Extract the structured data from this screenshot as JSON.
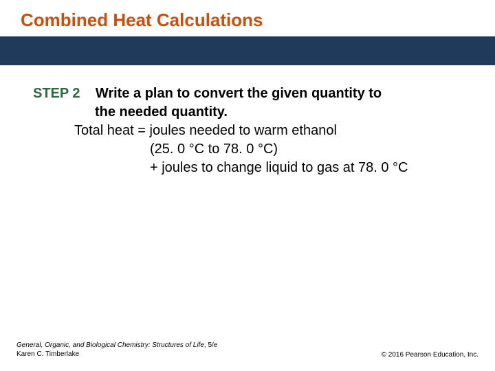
{
  "colors": {
    "title": "#c84f0e",
    "bar": "#1f3a5a",
    "step_label": "#2a6a3f",
    "body_text": "#000000"
  },
  "title": "Combined Heat Calculations",
  "step": {
    "label": "STEP 2",
    "prompt_line1": "Write a plan to convert the given quantity to",
    "prompt_line2": "the needed quantity.",
    "body_line1": "Total heat = joules needed to warm ethanol",
    "body_line2": "(25. 0 °C  to 78. 0 °C)",
    "body_line3": "+ joules to change liquid to gas at 78. 0 °C"
  },
  "footer": {
    "book_title": "General, Organic, and Biological Chemistry: Structures of Life",
    "edition": ", 5/e",
    "author": "Karen C. Timberlake",
    "copyright": "© 2016 Pearson Education, Inc."
  }
}
